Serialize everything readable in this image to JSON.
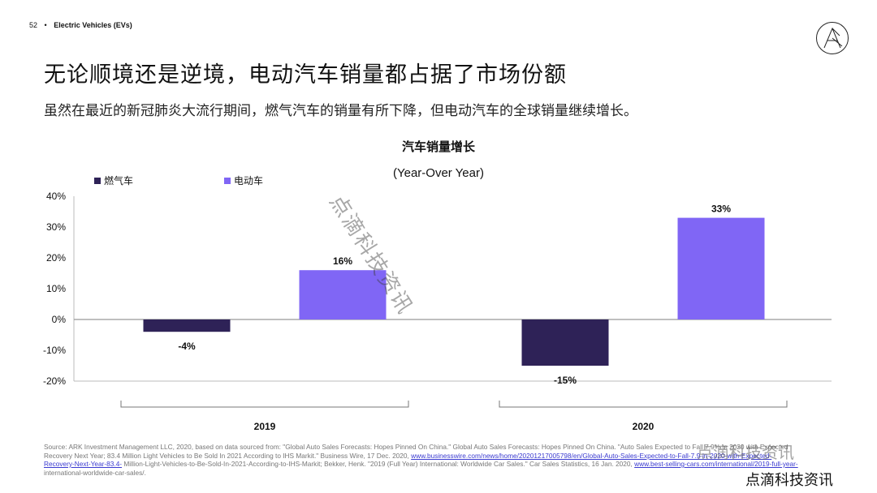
{
  "header": {
    "page_number": "52",
    "bullet": "•",
    "section": "Electric Vehicles (EVs)"
  },
  "title": "无论顺境还是逆境，电动汽车销量都占据了市场份额",
  "subtitle": "虽然在最近的新冠肺炎大流行期间，燃气汽车的销量有所下降，但电动汽车的全球销量继续增长。",
  "colors": {
    "gas": "#2e2257",
    "ev": "#8066f5",
    "axis": "#999999",
    "text": "#111111"
  },
  "chart_data": {
    "type": "bar",
    "title": "汽车销量增长",
    "subtitle": "(Year-Over Year)",
    "categories": [
      "2019",
      "2020"
    ],
    "series": [
      {
        "name": "燃气车",
        "values": [
          -4,
          -15
        ],
        "labels": [
          "-4%",
          "-15%"
        ]
      },
      {
        "name": "电动车",
        "values": [
          16,
          33
        ],
        "labels": [
          "16%",
          "33%"
        ]
      }
    ],
    "ylim": [
      -20,
      40
    ],
    "yticks": [
      40,
      30,
      20,
      10,
      0,
      -10,
      -20
    ],
    "ytick_labels": [
      "40%",
      "30%",
      "20%",
      "10%",
      "0%",
      "-10%",
      "-20%"
    ],
    "legend_position": "top-left",
    "grid": false
  },
  "source": {
    "text1": "Source: ARK Investment Management LLC, 2020, based on data sourced from: \"Global Auto Sales Forecasts: Hopes Pinned On China.\" Global Auto Sales Forecasts: Hopes Pinned On China. \"Auto Sales Expected to Fall 7.9% in 2020 with Expected Recovery Next Year; 83.4 Million Light Vehicles to Be Sold In 2021 According to IHS Markit.\" Business Wire, 17 Dec. 2020,",
    "link1": "www.businesswire.com/news/home/20201217005798/en/Global-Auto-Sales-Expected-to-Fall-7.9-in-2020-with-Expected-Recovery-Next-Year-83.4-",
    "text2": "Million-Light-Vehicles-to-Be-Sold-In-2021-According-to-IHS-Markit; Bekker, Henk. \"2019 (Full Year) International: Worldwide Car Sales.\" Car Sales Statistics, 16 Jan. 2020,",
    "link2": "www.best-selling-cars.com/international/2019-full-year-",
    "text3": "international-worldwide-car-sales/."
  },
  "watermark": {
    "diagonal": "点滴科技资讯",
    "bottom1": "点滴科技资讯",
    "bottom2": "点滴科技资讯"
  }
}
